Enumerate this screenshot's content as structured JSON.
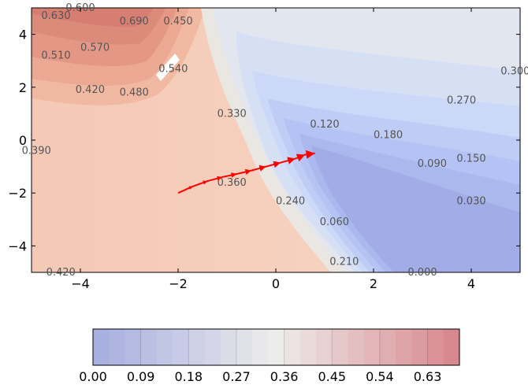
{
  "chart_data": {
    "type": "contour",
    "title": "",
    "xlabel": "",
    "ylabel": "",
    "xlim": [
      -5,
      5
    ],
    "ylim": [
      -5,
      5
    ],
    "x_ticks": [
      -4,
      -2,
      0,
      2,
      4
    ],
    "y_ticks": [
      4,
      2,
      0,
      -2,
      -4
    ],
    "grid": false,
    "colormap": "coolwarm",
    "colors": {
      "low": "#3b4cc0",
      "mid": "#dddddd",
      "high": "#b40426",
      "path": "#ff0000"
    },
    "contour_labels": [
      {
        "text": "0.600",
        "x": -4.0,
        "y": 5.0
      },
      {
        "text": "0.630",
        "x": -4.5,
        "y": 4.7
      },
      {
        "text": "0.690",
        "x": -2.9,
        "y": 4.5
      },
      {
        "text": "0.450",
        "x": -2.0,
        "y": 4.5
      },
      {
        "text": "0.570",
        "x": -3.7,
        "y": 3.5
      },
      {
        "text": "0.510",
        "x": -4.5,
        "y": 3.2
      },
      {
        "text": "0.540",
        "x": -2.1,
        "y": 2.7
      },
      {
        "text": "0.420",
        "x": -3.8,
        "y": 1.9
      },
      {
        "text": "0.480",
        "x": -2.9,
        "y": 1.8
      },
      {
        "text": "0.330",
        "x": -0.9,
        "y": 1.0
      },
      {
        "text": "0.300",
        "x": 4.9,
        "y": 2.6
      },
      {
        "text": "0.270",
        "x": 3.8,
        "y": 1.5
      },
      {
        "text": "0.120",
        "x": 1.0,
        "y": 0.6
      },
      {
        "text": "0.180",
        "x": 2.3,
        "y": 0.2
      },
      {
        "text": "0.090",
        "x": 3.2,
        "y": -0.9
      },
      {
        "text": "0.150",
        "x": 4.0,
        "y": -0.7
      },
      {
        "text": "0.390",
        "x": -4.9,
        "y": -0.4
      },
      {
        "text": "0.360",
        "x": -0.9,
        "y": -1.6
      },
      {
        "text": "0.240",
        "x": 0.3,
        "y": -2.3
      },
      {
        "text": "0.060",
        "x": 1.2,
        "y": -3.1
      },
      {
        "text": "0.030",
        "x": 4.0,
        "y": -2.3
      },
      {
        "text": "0.210",
        "x": 1.4,
        "y": -4.6
      },
      {
        "text": "0.000",
        "x": 3.0,
        "y": -5.0
      },
      {
        "text": "0.420",
        "x": -4.4,
        "y": -5.0
      }
    ],
    "path": [
      [
        -2.0,
        -2.0
      ],
      [
        -1.7,
        -1.75
      ],
      [
        -1.4,
        -1.55
      ],
      [
        -1.1,
        -1.4
      ],
      [
        -0.8,
        -1.28
      ],
      [
        -0.5,
        -1.15
      ],
      [
        -0.2,
        -1.0
      ],
      [
        0.1,
        -0.85
      ],
      [
        0.4,
        -0.7
      ],
      [
        0.6,
        -0.55
      ],
      [
        0.8,
        -0.5
      ]
    ],
    "colorbar": {
      "ticks": [
        "0.00",
        "0.09",
        "0.18",
        "0.27",
        "0.36",
        "0.45",
        "0.54",
        "0.63"
      ],
      "min": 0.0,
      "max": 0.69,
      "levels": 23
    }
  }
}
